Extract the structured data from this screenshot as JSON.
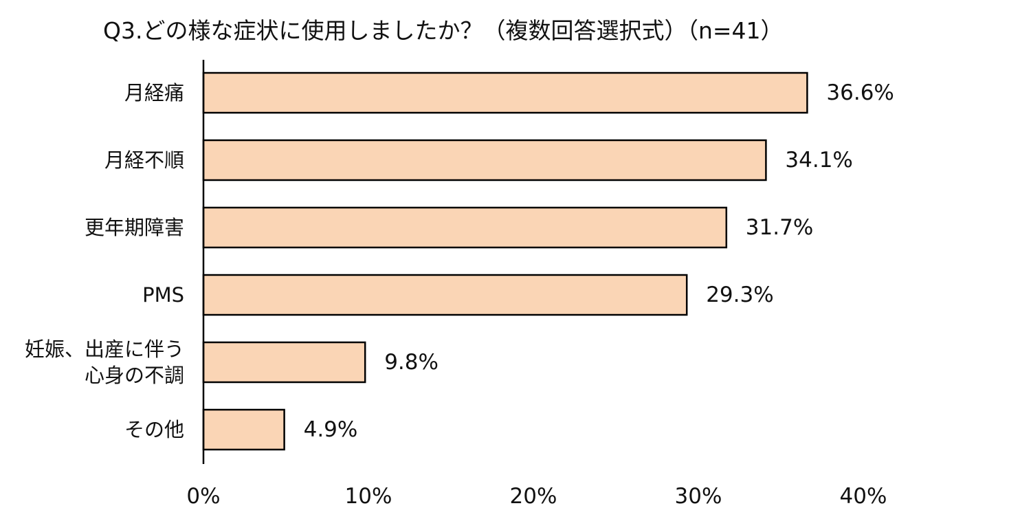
{
  "chart_data": {
    "type": "bar",
    "orientation": "horizontal",
    "title": "Q3.どの様な症状に使用しましたか？（複数回答選択式）（n=41）",
    "categories": [
      [
        "月経痛"
      ],
      [
        "月経不順"
      ],
      [
        "更年期障害"
      ],
      [
        "PMS"
      ],
      [
        "妊娠、出産に伴う",
        "心身の不調"
      ],
      [
        "その他"
      ]
    ],
    "values": [
      36.6,
      34.1,
      31.7,
      29.3,
      9.8,
      4.9
    ],
    "value_labels": [
      "36.6%",
      "34.1%",
      "31.7%",
      "29.3%",
      "9.8%",
      "4.9%"
    ],
    "xlim": [
      0,
      40
    ],
    "x_ticks": [
      0,
      10,
      20,
      30,
      40
    ],
    "x_tick_labels": [
      "0%",
      "10%",
      "20%",
      "30%",
      "40%"
    ],
    "xlabel": "",
    "ylabel": "",
    "grid": false,
    "legend": "none",
    "bar_color": "#FAD5B5",
    "bar_border_color": "#000000"
  }
}
